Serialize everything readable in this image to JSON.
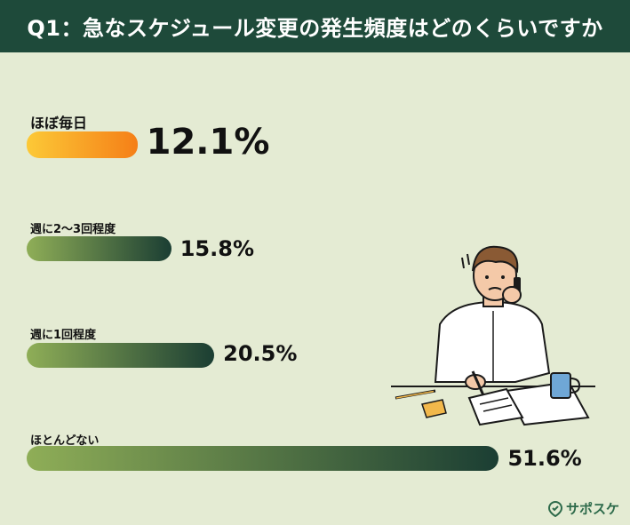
{
  "header": {
    "title": "Q1：急なスケジュール変更の発生頻度はどのくらいですか"
  },
  "brand": {
    "name": "サポスケ",
    "icon": "brand-pin-icon"
  },
  "colors": {
    "header_bg": "#1e4a3a",
    "background": "#e4ebd3",
    "highlight_start": "#fcc937",
    "highlight_end": "#f57f17",
    "bar_start": "#8fae57",
    "bar_end": "#1b3e33"
  },
  "chart_data": {
    "type": "bar",
    "orientation": "horizontal",
    "categories": [
      "ほぼ毎日",
      "週に2〜3回程度",
      "週に1回程度",
      "ほとんどない"
    ],
    "values": [
      12.1,
      15.8,
      20.5,
      51.6
    ],
    "value_labels": [
      "12.1%",
      "15.8%",
      "20.5%",
      "51.6%"
    ],
    "highlighted_category": "ほぼ毎日",
    "unit": "%"
  }
}
